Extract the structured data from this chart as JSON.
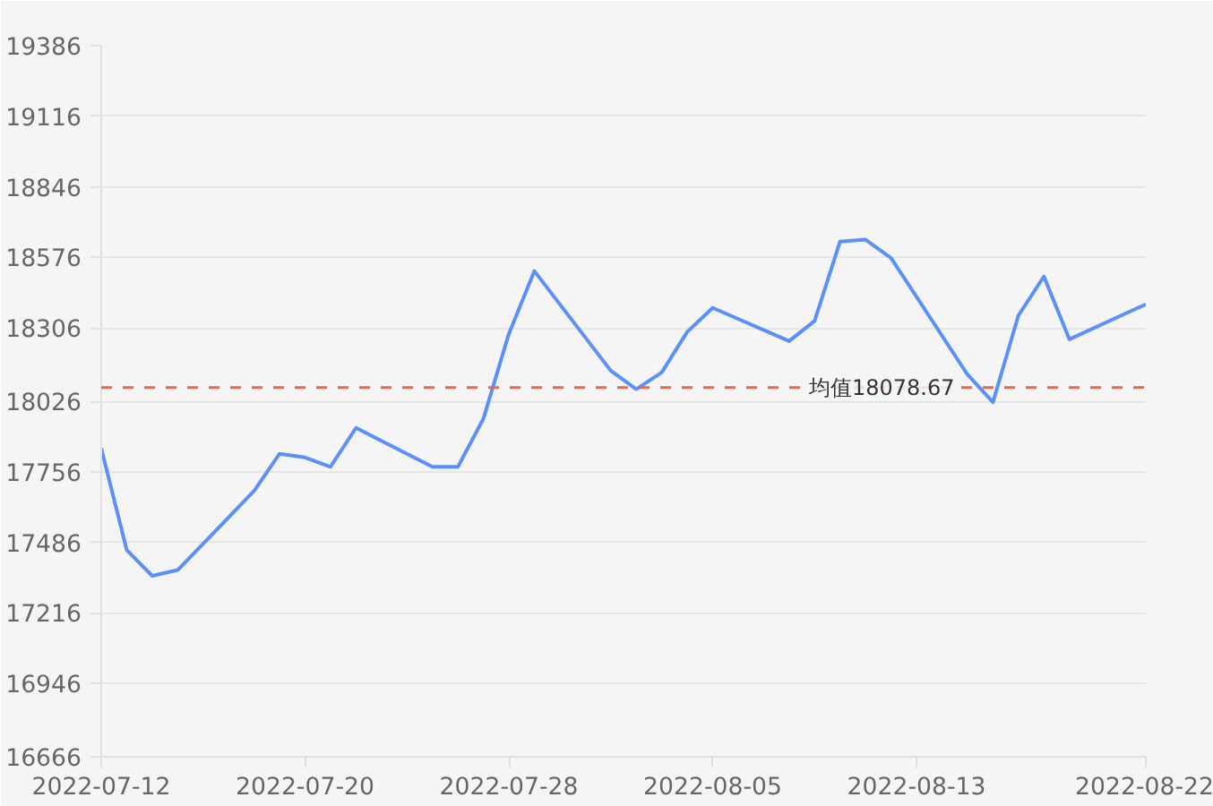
{
  "chart_data": {
    "type": "line",
    "x": [
      "2022-07-12",
      "2022-07-13",
      "2022-07-14",
      "2022-07-15",
      "2022-07-18",
      "2022-07-19",
      "2022-07-20",
      "2022-07-21",
      "2022-07-22",
      "2022-07-25",
      "2022-07-26",
      "2022-07-27",
      "2022-07-28",
      "2022-07-29",
      "2022-08-01",
      "2022-08-02",
      "2022-08-03",
      "2022-08-04",
      "2022-08-05",
      "2022-08-08",
      "2022-08-09",
      "2022-08-10",
      "2022-08-11",
      "2022-08-12",
      "2022-08-15",
      "2022-08-16",
      "2022-08-17",
      "2022-08-18",
      "2022-08-19",
      "2022-08-22"
    ],
    "series": [
      {
        "color": "#5b8ff9",
        "values": [
          17846,
          17457,
          17358,
          17380,
          17683,
          17825,
          17811,
          17775,
          17924,
          17775,
          17775,
          17959,
          18284,
          18524,
          18143,
          18072,
          18136,
          18291,
          18383,
          18256,
          18333,
          18637,
          18644,
          18574,
          18128,
          18022,
          18354,
          18503,
          18263,
          18397
        ]
      }
    ],
    "xlim": [
      "2022-07-12",
      "2022-08-22"
    ],
    "xticks": [
      "2022-07-12",
      "2022-07-20",
      "2022-07-28",
      "2022-08-05",
      "2022-08-13",
      "2022-08-22"
    ],
    "ylim": [
      16666,
      19386
    ],
    "yticks": [
      16666,
      16946,
      17216,
      17486,
      17756,
      18026,
      18306,
      18576,
      18846,
      19116,
      19386
    ],
    "ref_lines": [
      {
        "axis": "y",
        "value": 18078.67,
        "label": "均值18078.67",
        "color": "#e8684a",
        "line_style": "dashed"
      }
    ],
    "grid": "y",
    "marker": "none",
    "line_style": "solid"
  }
}
